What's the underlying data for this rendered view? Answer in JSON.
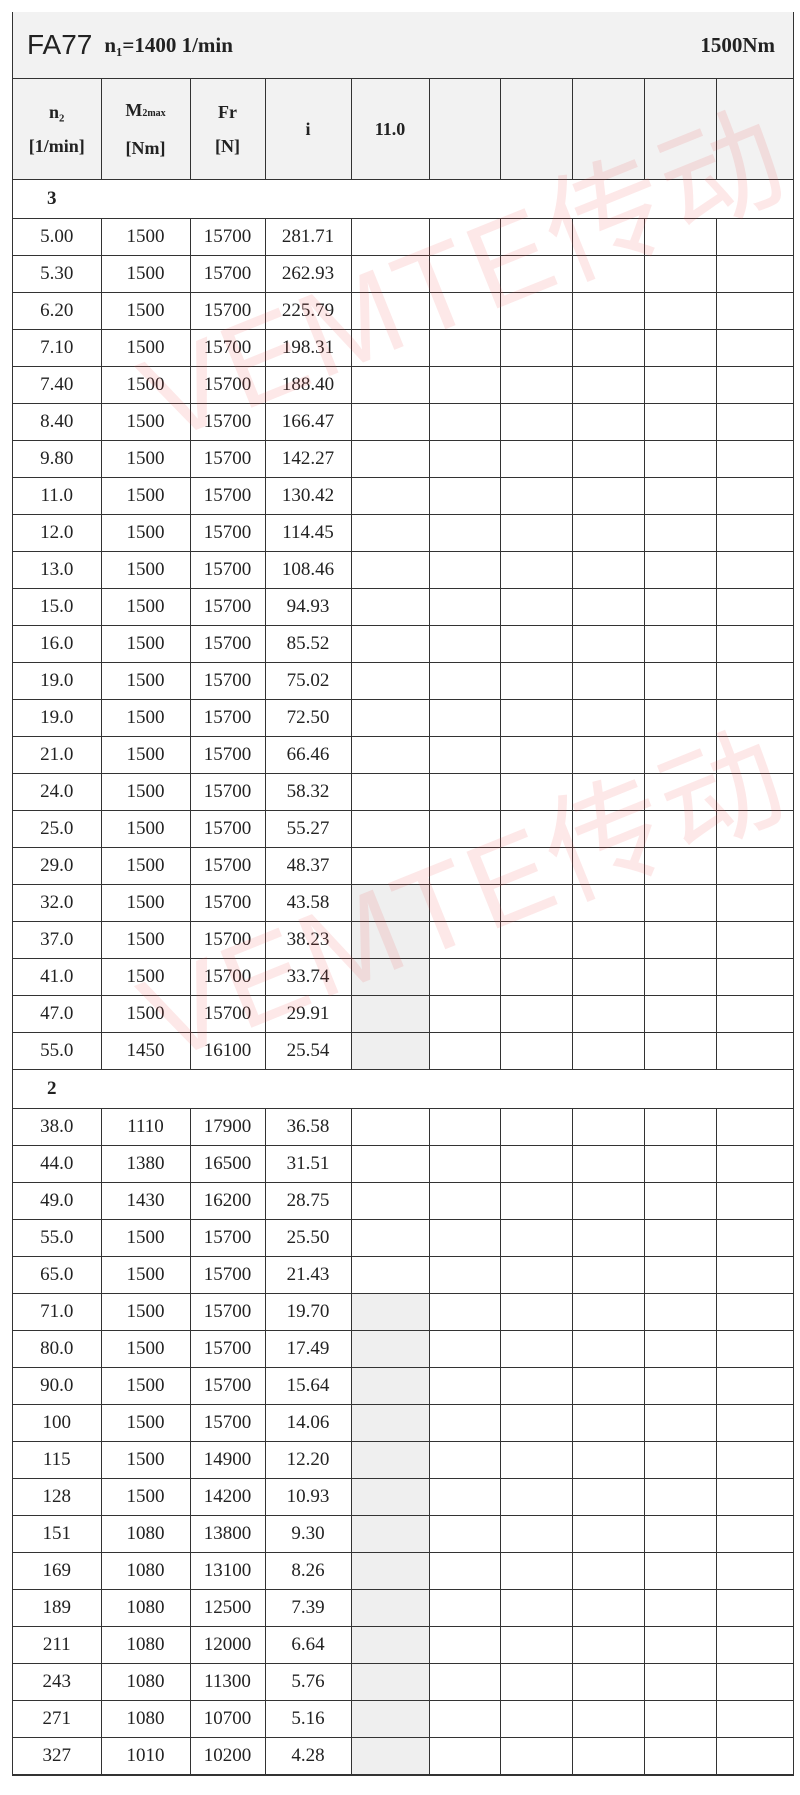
{
  "title": {
    "model": "FA77",
    "input_speed": "n₁=1400 1/min",
    "max_torque": "1500Nm"
  },
  "header": {
    "n2": "n₂",
    "n2_unit": "[1/min]",
    "m2_main": "M",
    "m2_sub": "2max",
    "m2_unit": "[Nm]",
    "fr": "Fr",
    "fr_unit": "[N]",
    "i": "i",
    "col5": "11.0"
  },
  "watermark": "VEMTE传动",
  "sections": [
    {
      "label": "3",
      "rows": [
        [
          "5.00",
          "1500",
          "15700",
          "281.71",
          false
        ],
        [
          "5.30",
          "1500",
          "15700",
          "262.93",
          false
        ],
        [
          "6.20",
          "1500",
          "15700",
          "225.79",
          false
        ],
        [
          "7.10",
          "1500",
          "15700",
          "198.31",
          false
        ],
        [
          "7.40",
          "1500",
          "15700",
          "188.40",
          false
        ],
        [
          "8.40",
          "1500",
          "15700",
          "166.47",
          false
        ],
        [
          "9.80",
          "1500",
          "15700",
          "142.27",
          false
        ],
        [
          "11.0",
          "1500",
          "15700",
          "130.42",
          false
        ],
        [
          "12.0",
          "1500",
          "15700",
          "114.45",
          false
        ],
        [
          "13.0",
          "1500",
          "15700",
          "108.46",
          false
        ],
        [
          "15.0",
          "1500",
          "15700",
          "94.93",
          false
        ],
        [
          "16.0",
          "1500",
          "15700",
          "85.52",
          false
        ],
        [
          "19.0",
          "1500",
          "15700",
          "75.02",
          false
        ],
        [
          "19.0",
          "1500",
          "15700",
          "72.50",
          false
        ],
        [
          "21.0",
          "1500",
          "15700",
          "66.46",
          false
        ],
        [
          "24.0",
          "1500",
          "15700",
          "58.32",
          false
        ],
        [
          "25.0",
          "1500",
          "15700",
          "55.27",
          false
        ],
        [
          "29.0",
          "1500",
          "15700",
          "48.37",
          false
        ],
        [
          "32.0",
          "1500",
          "15700",
          "43.58",
          true
        ],
        [
          "37.0",
          "1500",
          "15700",
          "38.23",
          true
        ],
        [
          "41.0",
          "1500",
          "15700",
          "33.74",
          true
        ],
        [
          "47.0",
          "1500",
          "15700",
          "29.91",
          true
        ],
        [
          "55.0",
          "1450",
          "16100",
          "25.54",
          true
        ]
      ]
    },
    {
      "label": "2",
      "rows": [
        [
          "38.0",
          "1110",
          "17900",
          "36.58",
          false
        ],
        [
          "44.0",
          "1380",
          "16500",
          "31.51",
          false
        ],
        [
          "49.0",
          "1430",
          "16200",
          "28.75",
          false
        ],
        [
          "55.0",
          "1500",
          "15700",
          "25.50",
          false
        ],
        [
          "65.0",
          "1500",
          "15700",
          "21.43",
          false
        ],
        [
          "71.0",
          "1500",
          "15700",
          "19.70",
          true
        ],
        [
          "80.0",
          "1500",
          "15700",
          "17.49",
          true
        ],
        [
          "90.0",
          "1500",
          "15700",
          "15.64",
          true
        ],
        [
          "100",
          "1500",
          "15700",
          "14.06",
          true
        ],
        [
          "115",
          "1500",
          "14900",
          "12.20",
          true
        ],
        [
          "128",
          "1500",
          "14200",
          "10.93",
          true
        ],
        [
          "151",
          "1080",
          "13800",
          "9.30",
          true
        ],
        [
          "169",
          "1080",
          "13100",
          "8.26",
          true
        ],
        [
          "189",
          "1080",
          "12500",
          "7.39",
          true
        ],
        [
          "211",
          "1080",
          "12000",
          "6.64",
          true
        ],
        [
          "243",
          "1080",
          "11300",
          "5.76",
          true
        ],
        [
          "271",
          "1080",
          "10700",
          "5.16",
          true
        ],
        [
          "327",
          "1010",
          "10200",
          "4.28",
          true
        ]
      ]
    }
  ]
}
